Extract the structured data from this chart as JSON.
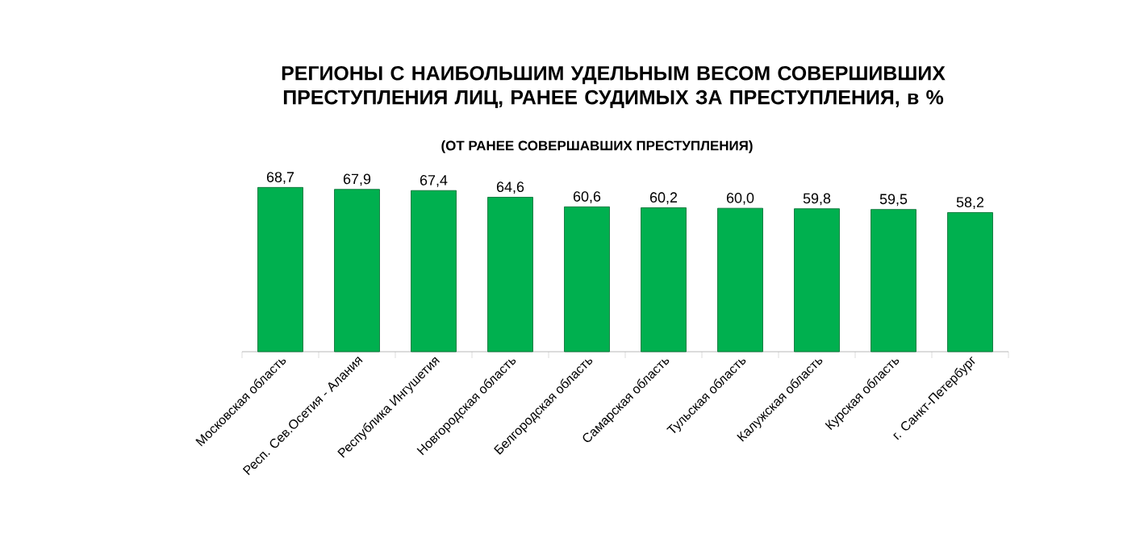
{
  "chart_data": {
    "type": "bar",
    "title": "РЕГИОНЫ С НАИБОЛЬШИМ УДЕЛЬНЫМ ВЕСОМ СОВЕРШИВШИХ ПРЕСТУПЛЕНИЯ ЛИЦ, РАНЕЕ СУДИМЫХ ЗА ПРЕСТУПЛЕНИЯ, в %",
    "subtitle": "(ОТ РАНЕЕ СОВЕРШАВШИХ ПРЕСТУПЛЕНИЯ)",
    "categories": [
      "Московская область",
      "Респ. Сев.Осетия - Алания",
      "Республика Ингушетия",
      "Новгородская область",
      "Белгородская область",
      "Самарская область",
      "Тульская область",
      "Калужская область",
      "Курская область",
      "г. Санкт-Петербург"
    ],
    "values": [
      68.7,
      67.9,
      67.4,
      64.6,
      60.6,
      60.2,
      60.0,
      59.8,
      59.5,
      58.2
    ],
    "value_labels": [
      "68,7",
      "67,9",
      "67,4",
      "64,6",
      "60,6",
      "60,2",
      "60,0",
      "59,8",
      "59,5",
      "58,2"
    ],
    "color": "#00b04f"
  }
}
